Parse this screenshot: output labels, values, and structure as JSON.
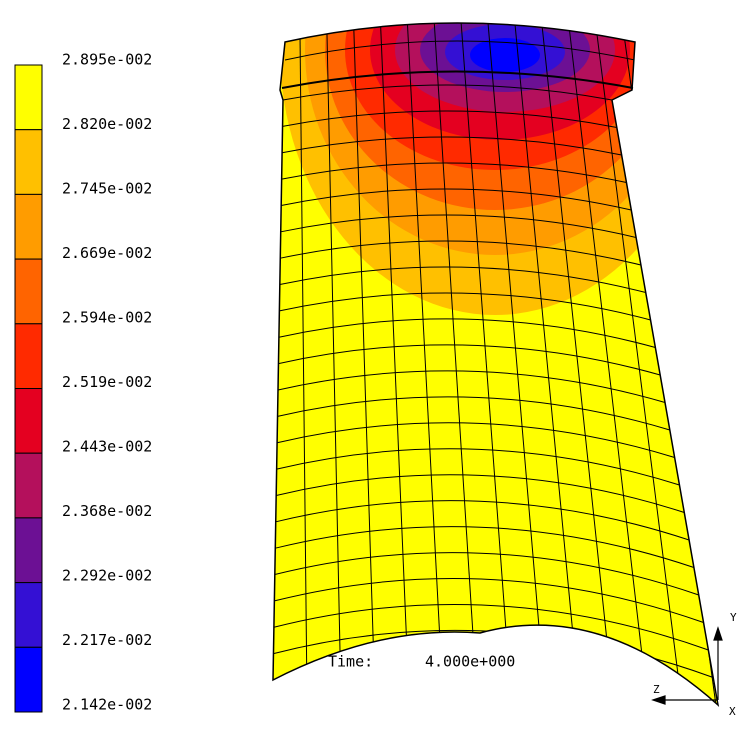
{
  "legend": {
    "labels": [
      "2.895e-002",
      "2.820e-002",
      "2.745e-002",
      "2.669e-002",
      "2.594e-002",
      "2.519e-002",
      "2.443e-002",
      "2.368e-002",
      "2.292e-002",
      "2.217e-002",
      "2.142e-002"
    ],
    "colors": [
      "#ffff00",
      "#ffc000",
      "#ff9c00",
      "#ff6400",
      "#ff2a00",
      "#e40020",
      "#b4105c",
      "#6c1094",
      "#3410d4",
      "#0000ff"
    ]
  },
  "time": {
    "label": "Time:",
    "value": "4.000e+000"
  },
  "triad": {
    "y": "Y",
    "z": "Z",
    "x": "X"
  }
}
